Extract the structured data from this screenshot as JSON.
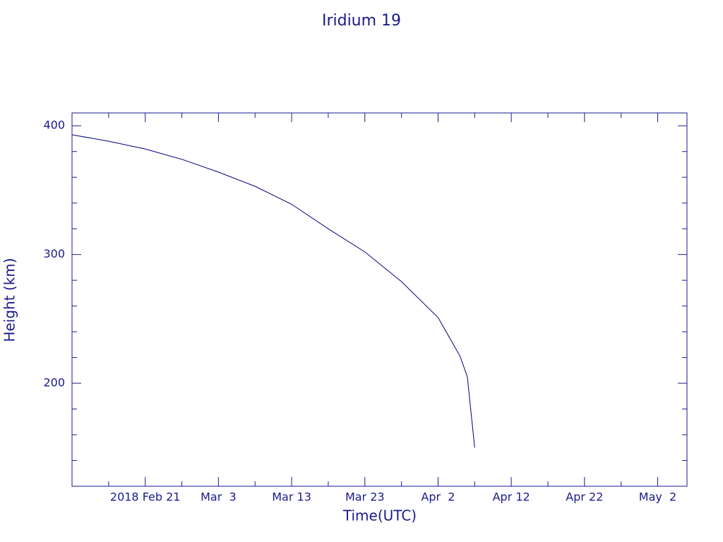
{
  "chart_data": {
    "type": "line",
    "title": "Iridium 19",
    "xlabel": "Time(UTC)",
    "ylabel": "Height (km)",
    "x": [
      "2018-02-11",
      "2018-02-16",
      "2018-02-21",
      "2018-02-26",
      "2018-03-03",
      "2018-03-08",
      "2018-03-13",
      "2018-03-18",
      "2018-03-23",
      "2018-03-28",
      "2018-04-02",
      "2018-04-05",
      "2018-04-06",
      "2018-04-07"
    ],
    "values": [
      393,
      388,
      382,
      374,
      364,
      353,
      339,
      320,
      302,
      279,
      251,
      221,
      205,
      150
    ],
    "color": "#00007f",
    "xlim": [
      "2018-02-11",
      "2018-05-06"
    ],
    "xticks": [
      {
        "value": "2018-02-21",
        "label": "2018 Feb 21"
      },
      {
        "value": "2018-03-03",
        "label": "Mar  3"
      },
      {
        "value": "2018-03-13",
        "label": "Mar 13"
      },
      {
        "value": "2018-03-23",
        "label": "Mar 23"
      },
      {
        "value": "2018-04-02",
        "label": "Apr  2"
      },
      {
        "value": "2018-04-12",
        "label": "Apr 12"
      },
      {
        "value": "2018-04-22",
        "label": "Apr 22"
      },
      {
        "value": "2018-05-02",
        "label": "May  2"
      }
    ],
    "xminor_ticks": [
      "2018-02-16",
      "2018-02-26",
      "2018-03-08",
      "2018-03-18",
      "2018-03-28",
      "2018-04-07",
      "2018-04-17",
      "2018-04-27"
    ],
    "ylim": [
      120,
      410
    ],
    "yticks": [
      200,
      300,
      400
    ],
    "yminor_ticks": [
      140,
      160,
      180,
      220,
      240,
      260,
      280,
      320,
      340,
      360,
      380
    ]
  }
}
